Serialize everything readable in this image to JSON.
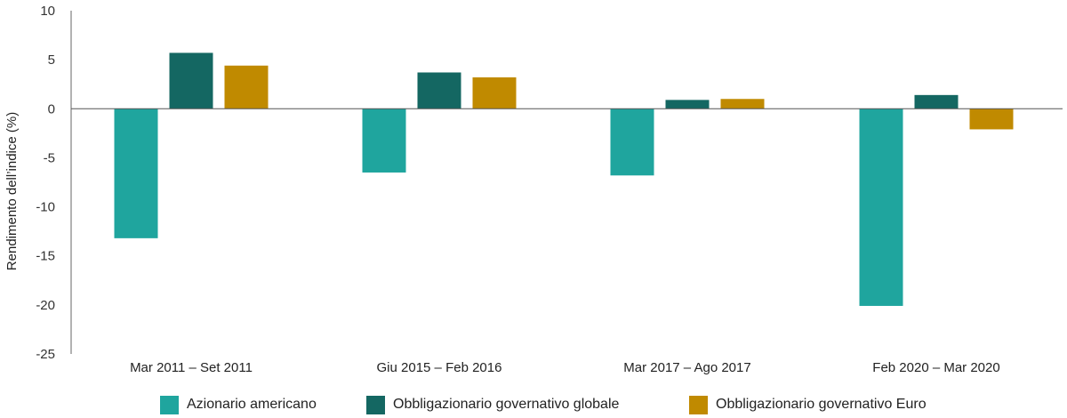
{
  "chart_data": {
    "type": "bar",
    "ylabel": "Rendimento dell’indice (%)",
    "ylim": [
      -25,
      10
    ],
    "yticks": [
      10,
      5,
      0,
      -5,
      -10,
      -15,
      -20,
      -25
    ],
    "ytick_labels": [
      "10",
      "5",
      "0",
      "-5",
      "-10",
      "-15",
      "-20",
      "-25"
    ],
    "categories": [
      "Mar 2011 – Set 2011",
      "Giu 2015 – Feb 2016",
      "Mar 2017 – Ago 2017",
      "Feb 2020 – Mar 2020"
    ],
    "series": [
      {
        "name": "Azionario americano",
        "color": "#1FA59E",
        "values": [
          -13.2,
          -6.5,
          -6.8,
          -20.1
        ]
      },
      {
        "name": "Obbligazionario governativo globale",
        "color": "#146762",
        "values": [
          5.7,
          3.7,
          0.9,
          1.4
        ]
      },
      {
        "name": "Obbligazionario governativo Euro",
        "color": "#C08A00",
        "values": [
          4.4,
          3.2,
          1.0,
          -2.1
        ]
      }
    ],
    "grid": false,
    "legend_position": "bottom"
  }
}
